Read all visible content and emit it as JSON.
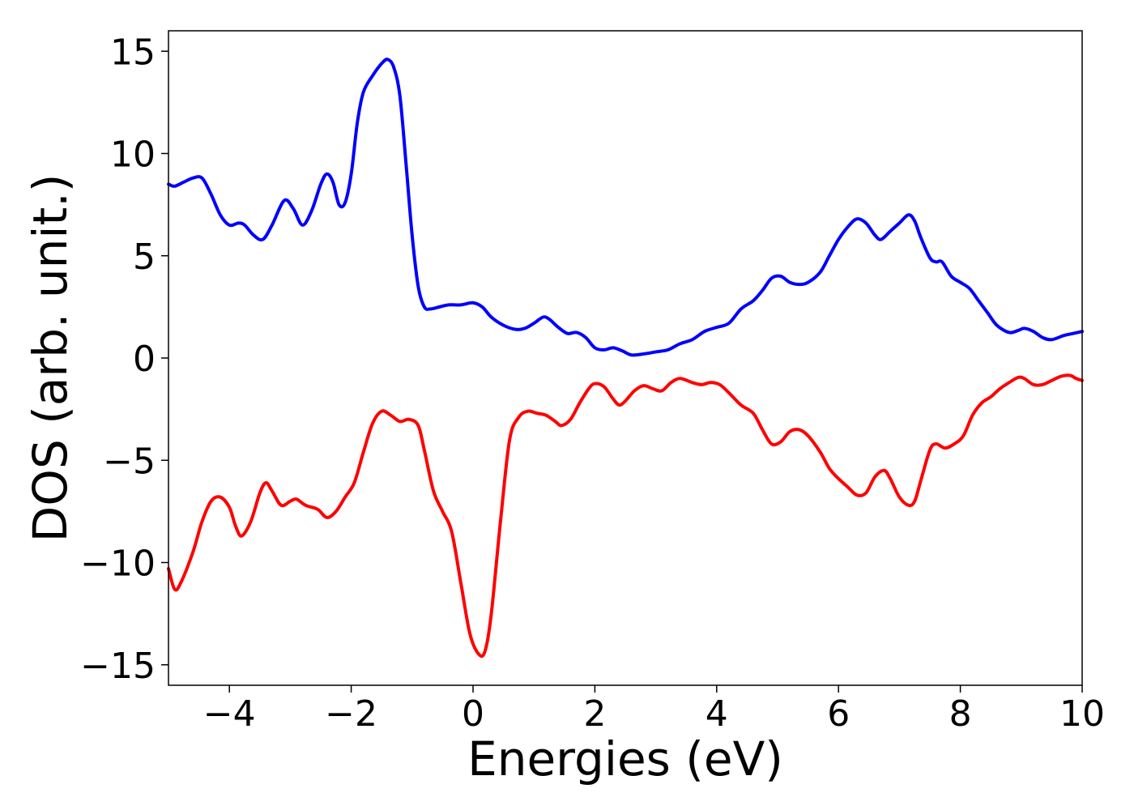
{
  "chart_data": {
    "type": "line",
    "xlabel": "Energies (eV)",
    "ylabel": "DOS (arb. unit.)",
    "xlim": [
      -5,
      10
    ],
    "ylim": [
      -16,
      16
    ],
    "x_ticks": [
      -4,
      -2,
      0,
      2,
      4,
      6,
      8,
      10
    ],
    "y_ticks": [
      -15,
      -10,
      -5,
      0,
      5,
      10,
      15
    ],
    "x_tick_labels": [
      "−4",
      "−2",
      "0",
      "2",
      "4",
      "6",
      "8",
      "10"
    ],
    "y_tick_labels": [
      "−15",
      "−10",
      "−5",
      "0",
      "5",
      "10",
      "15"
    ],
    "grid": false,
    "series": [
      {
        "color": "#0000ff",
        "points": [
          [
            -5.0,
            8.5
          ],
          [
            -4.9,
            8.4
          ],
          [
            -4.75,
            8.6
          ],
          [
            -4.6,
            8.8
          ],
          [
            -4.45,
            8.8
          ],
          [
            -4.3,
            8.0
          ],
          [
            -4.15,
            7.0
          ],
          [
            -4.0,
            6.5
          ],
          [
            -3.85,
            6.6
          ],
          [
            -3.75,
            6.5
          ],
          [
            -3.6,
            6.0
          ],
          [
            -3.45,
            5.8
          ],
          [
            -3.3,
            6.5
          ],
          [
            -3.1,
            7.7
          ],
          [
            -2.95,
            7.3
          ],
          [
            -2.8,
            6.5
          ],
          [
            -2.65,
            7.2
          ],
          [
            -2.5,
            8.5
          ],
          [
            -2.4,
            9.0
          ],
          [
            -2.3,
            8.6
          ],
          [
            -2.2,
            7.5
          ],
          [
            -2.1,
            7.6
          ],
          [
            -2.0,
            9.0
          ],
          [
            -1.9,
            11.5
          ],
          [
            -1.8,
            13.0
          ],
          [
            -1.65,
            13.8
          ],
          [
            -1.5,
            14.4
          ],
          [
            -1.4,
            14.6
          ],
          [
            -1.3,
            14.2
          ],
          [
            -1.2,
            12.8
          ],
          [
            -1.1,
            9.5
          ],
          [
            -1.0,
            6.0
          ],
          [
            -0.9,
            3.5
          ],
          [
            -0.8,
            2.5
          ],
          [
            -0.7,
            2.4
          ],
          [
            -0.55,
            2.5
          ],
          [
            -0.4,
            2.6
          ],
          [
            -0.2,
            2.6
          ],
          [
            0.0,
            2.7
          ],
          [
            0.15,
            2.5
          ],
          [
            0.3,
            2.0
          ],
          [
            0.5,
            1.6
          ],
          [
            0.7,
            1.4
          ],
          [
            0.85,
            1.45
          ],
          [
            1.0,
            1.7
          ],
          [
            1.15,
            2.0
          ],
          [
            1.25,
            1.9
          ],
          [
            1.4,
            1.5
          ],
          [
            1.55,
            1.2
          ],
          [
            1.7,
            1.25
          ],
          [
            1.85,
            1.0
          ],
          [
            2.0,
            0.5
          ],
          [
            2.15,
            0.4
          ],
          [
            2.3,
            0.5
          ],
          [
            2.45,
            0.35
          ],
          [
            2.6,
            0.15
          ],
          [
            2.8,
            0.2
          ],
          [
            3.0,
            0.3
          ],
          [
            3.2,
            0.4
          ],
          [
            3.4,
            0.7
          ],
          [
            3.6,
            0.9
          ],
          [
            3.8,
            1.3
          ],
          [
            4.0,
            1.5
          ],
          [
            4.2,
            1.7
          ],
          [
            4.4,
            2.4
          ],
          [
            4.6,
            2.8
          ],
          [
            4.75,
            3.3
          ],
          [
            4.9,
            3.9
          ],
          [
            5.05,
            4.0
          ],
          [
            5.2,
            3.7
          ],
          [
            5.35,
            3.6
          ],
          [
            5.5,
            3.7
          ],
          [
            5.7,
            4.2
          ],
          [
            5.85,
            5.0
          ],
          [
            6.0,
            5.8
          ],
          [
            6.15,
            6.4
          ],
          [
            6.3,
            6.8
          ],
          [
            6.45,
            6.6
          ],
          [
            6.6,
            6.0
          ],
          [
            6.7,
            5.8
          ],
          [
            6.85,
            6.2
          ],
          [
            7.0,
            6.6
          ],
          [
            7.15,
            7.0
          ],
          [
            7.25,
            6.7
          ],
          [
            7.35,
            5.9
          ],
          [
            7.5,
            4.9
          ],
          [
            7.6,
            4.7
          ],
          [
            7.7,
            4.7
          ],
          [
            7.85,
            4.0
          ],
          [
            8.0,
            3.7
          ],
          [
            8.15,
            3.4
          ],
          [
            8.3,
            2.8
          ],
          [
            8.45,
            2.2
          ],
          [
            8.6,
            1.6
          ],
          [
            8.8,
            1.25
          ],
          [
            8.95,
            1.35
          ],
          [
            9.05,
            1.45
          ],
          [
            9.2,
            1.3
          ],
          [
            9.35,
            1.0
          ],
          [
            9.5,
            0.9
          ],
          [
            9.7,
            1.1
          ],
          [
            9.85,
            1.2
          ],
          [
            10.0,
            1.3
          ]
        ]
      },
      {
        "color": "#ff0000",
        "points": [
          [
            -5.0,
            -10.3
          ],
          [
            -4.9,
            -11.3
          ],
          [
            -4.8,
            -11.0
          ],
          [
            -4.6,
            -9.5
          ],
          [
            -4.45,
            -8.0
          ],
          [
            -4.3,
            -7.0
          ],
          [
            -4.15,
            -6.8
          ],
          [
            -4.0,
            -7.3
          ],
          [
            -3.9,
            -8.2
          ],
          [
            -3.8,
            -8.7
          ],
          [
            -3.65,
            -8.0
          ],
          [
            -3.5,
            -6.6
          ],
          [
            -3.4,
            -6.1
          ],
          [
            -3.3,
            -6.5
          ],
          [
            -3.15,
            -7.2
          ],
          [
            -3.0,
            -7.0
          ],
          [
            -2.9,
            -6.9
          ],
          [
            -2.75,
            -7.2
          ],
          [
            -2.55,
            -7.4
          ],
          [
            -2.4,
            -7.8
          ],
          [
            -2.25,
            -7.5
          ],
          [
            -2.1,
            -6.8
          ],
          [
            -1.95,
            -6.1
          ],
          [
            -1.8,
            -4.6
          ],
          [
            -1.65,
            -3.2
          ],
          [
            -1.5,
            -2.6
          ],
          [
            -1.35,
            -2.8
          ],
          [
            -1.2,
            -3.1
          ],
          [
            -1.05,
            -3.0
          ],
          [
            -0.9,
            -3.3
          ],
          [
            -0.8,
            -4.5
          ],
          [
            -0.65,
            -6.5
          ],
          [
            -0.5,
            -7.5
          ],
          [
            -0.35,
            -8.5
          ],
          [
            -0.2,
            -11.0
          ],
          [
            -0.05,
            -13.5
          ],
          [
            0.1,
            -14.5
          ],
          [
            0.2,
            -14.3
          ],
          [
            0.3,
            -12.5
          ],
          [
            0.45,
            -8.0
          ],
          [
            0.6,
            -4.0
          ],
          [
            0.75,
            -2.9
          ],
          [
            0.9,
            -2.6
          ],
          [
            1.05,
            -2.7
          ],
          [
            1.2,
            -2.8
          ],
          [
            1.35,
            -3.1
          ],
          [
            1.45,
            -3.3
          ],
          [
            1.6,
            -3.0
          ],
          [
            1.75,
            -2.2
          ],
          [
            1.9,
            -1.5
          ],
          [
            2.0,
            -1.25
          ],
          [
            2.15,
            -1.4
          ],
          [
            2.3,
            -2.0
          ],
          [
            2.4,
            -2.3
          ],
          [
            2.5,
            -2.1
          ],
          [
            2.65,
            -1.6
          ],
          [
            2.8,
            -1.35
          ],
          [
            2.95,
            -1.5
          ],
          [
            3.1,
            -1.6
          ],
          [
            3.25,
            -1.2
          ],
          [
            3.4,
            -1.0
          ],
          [
            3.6,
            -1.2
          ],
          [
            3.75,
            -1.3
          ],
          [
            3.9,
            -1.2
          ],
          [
            4.05,
            -1.3
          ],
          [
            4.2,
            -1.7
          ],
          [
            4.4,
            -2.3
          ],
          [
            4.6,
            -2.7
          ],
          [
            4.75,
            -3.5
          ],
          [
            4.9,
            -4.2
          ],
          [
            5.05,
            -4.1
          ],
          [
            5.2,
            -3.6
          ],
          [
            5.35,
            -3.5
          ],
          [
            5.5,
            -3.8
          ],
          [
            5.7,
            -4.6
          ],
          [
            5.85,
            -5.4
          ],
          [
            6.0,
            -5.9
          ],
          [
            6.15,
            -6.3
          ],
          [
            6.3,
            -6.7
          ],
          [
            6.45,
            -6.6
          ],
          [
            6.6,
            -5.8
          ],
          [
            6.75,
            -5.5
          ],
          [
            6.85,
            -5.9
          ],
          [
            7.0,
            -6.8
          ],
          [
            7.15,
            -7.2
          ],
          [
            7.25,
            -7.0
          ],
          [
            7.35,
            -6.0
          ],
          [
            7.5,
            -4.5
          ],
          [
            7.6,
            -4.2
          ],
          [
            7.75,
            -4.4
          ],
          [
            7.9,
            -4.2
          ],
          [
            8.05,
            -3.8
          ],
          [
            8.2,
            -2.8
          ],
          [
            8.35,
            -2.2
          ],
          [
            8.5,
            -1.9
          ],
          [
            8.65,
            -1.5
          ],
          [
            8.8,
            -1.2
          ],
          [
            8.95,
            -0.95
          ],
          [
            9.05,
            -1.0
          ],
          [
            9.2,
            -1.3
          ],
          [
            9.35,
            -1.3
          ],
          [
            9.5,
            -1.1
          ],
          [
            9.65,
            -0.9
          ],
          [
            9.8,
            -0.85
          ],
          [
            9.9,
            -1.0
          ],
          [
            10.0,
            -1.1
          ]
        ]
      }
    ]
  }
}
